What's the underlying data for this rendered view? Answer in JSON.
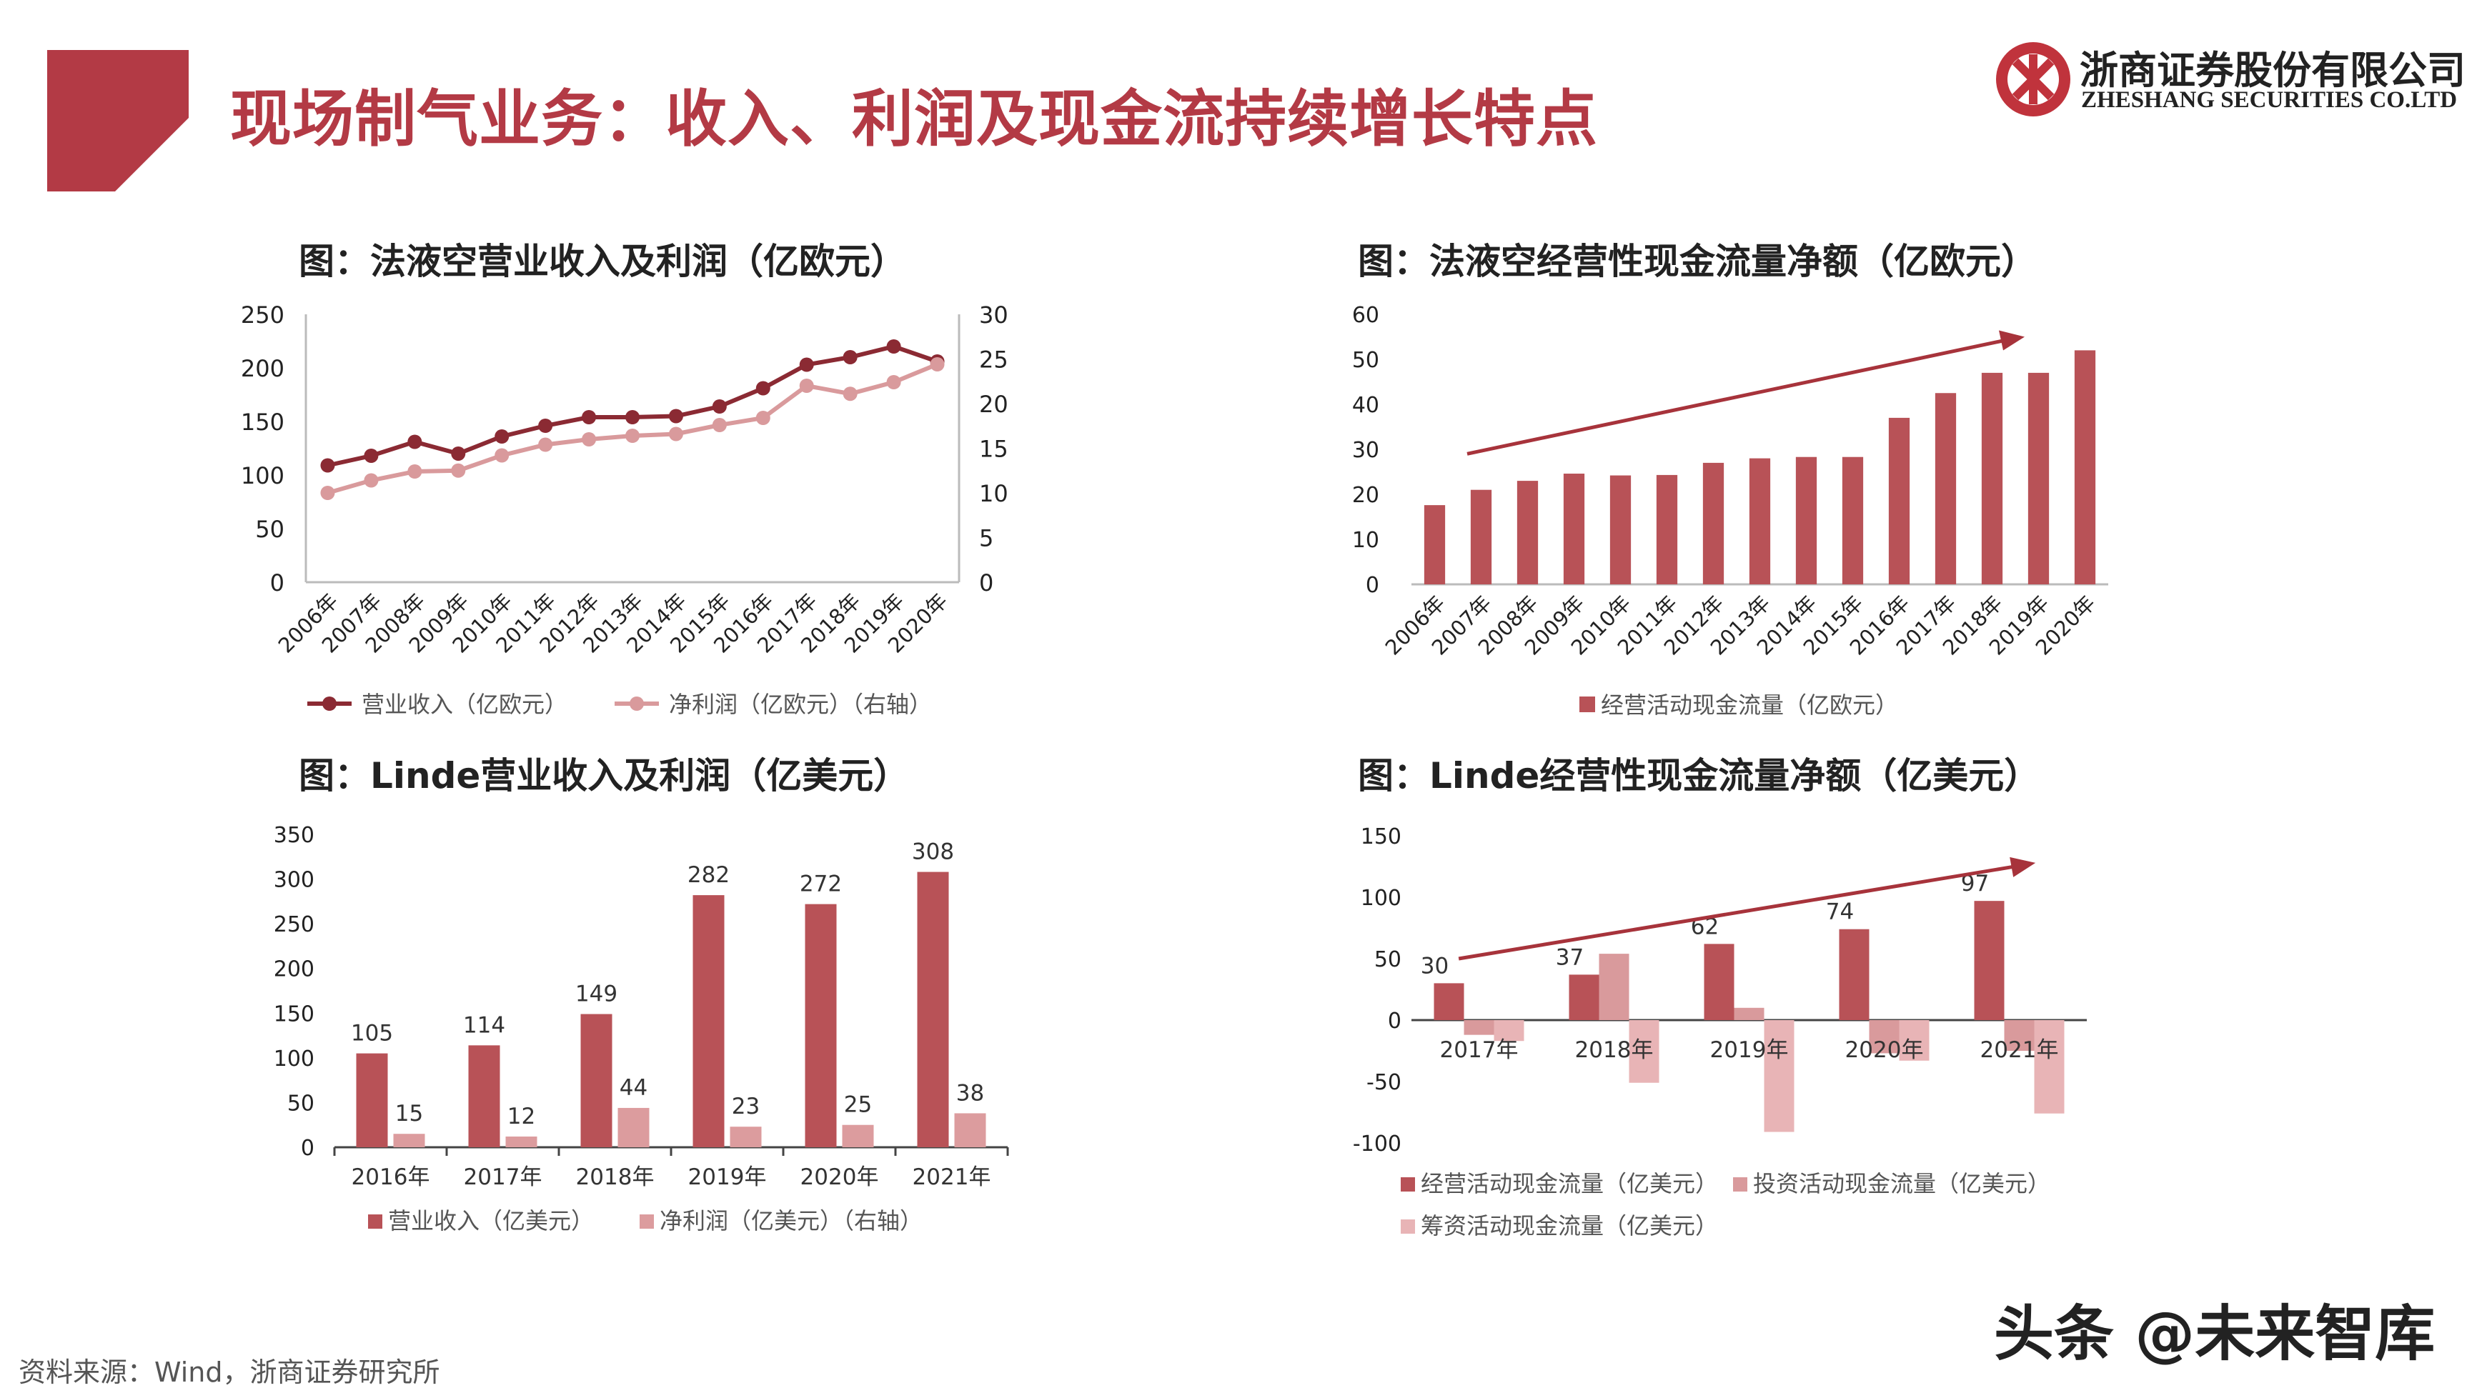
{
  "header": {
    "title": "现场制气业务：收入、利润及现金流持续增长特点",
    "logo_cn": "浙商证券股份有限公司",
    "logo_en": "ZHESHANG SECURITIES CO.LTD",
    "accent_color": "#b33a45"
  },
  "footer": {
    "source": "资料来源：Wind，浙商证券研究所",
    "watermark": "头条 @未来智库"
  },
  "chart_data": [
    {
      "id": "airliquide_revenue_profit",
      "type": "line",
      "title": "图：法液空营业收入及利润（亿欧元）",
      "categories": [
        "2006年",
        "2007年",
        "2008年",
        "2009年",
        "2010年",
        "2011年",
        "2012年",
        "2013年",
        "2014年",
        "2015年",
        "2016年",
        "2017年",
        "2018年",
        "2019年",
        "2020年"
      ],
      "series": [
        {
          "name": "营业收入（亿欧元）",
          "axis": "left",
          "color": "#8b2a33",
          "values": [
            109,
            118,
            131,
            120,
            136,
            146,
            154,
            154,
            155,
            164,
            181,
            203,
            210,
            220,
            206
          ]
        },
        {
          "name": "净利润（亿欧元）（右轴）",
          "axis": "right",
          "color": "#d99a9c",
          "values": [
            10,
            11.4,
            12.4,
            12.5,
            14.2,
            15.4,
            16.0,
            16.4,
            16.6,
            17.6,
            18.4,
            22.0,
            21.1,
            22.4,
            24.4
          ]
        }
      ],
      "ylim_left": [
        0,
        250
      ],
      "yticks_left": [
        0,
        50,
        100,
        150,
        200,
        250
      ],
      "ylim_right": [
        0,
        30
      ],
      "yticks_right": [
        0,
        5,
        10,
        15,
        20,
        25,
        30
      ],
      "legend": "bottom"
    },
    {
      "id": "airliquide_cashflow",
      "type": "bar",
      "title": "图：法液空经营性现金流量净额（亿欧元）",
      "categories": [
        "2006年",
        "2007年",
        "2008年",
        "2009年",
        "2010年",
        "2011年",
        "2012年",
        "2013年",
        "2014年",
        "2015年",
        "2016年",
        "2017年",
        "2018年",
        "2019年",
        "2020年"
      ],
      "series": [
        {
          "name": "经营活动现金流量（亿欧元）",
          "color": "#b85257",
          "values": [
            17.6,
            21.0,
            23.0,
            24.6,
            24.2,
            24.3,
            27.0,
            28.0,
            28.3,
            28.3,
            37.0,
            42.5,
            47.0,
            47.0,
            52.0
          ]
        }
      ],
      "ylim": [
        0,
        60
      ],
      "yticks": [
        0,
        10,
        20,
        30,
        40,
        50,
        60
      ],
      "trend_arrow": true,
      "legend": "bottom"
    },
    {
      "id": "linde_revenue_profit",
      "type": "bar",
      "title": "图：Linde营业收入及利润（亿美元）",
      "categories": [
        "2016年",
        "2017年",
        "2018年",
        "2019年",
        "2020年",
        "2021年"
      ],
      "series": [
        {
          "name": "营业收入（亿美元）",
          "color": "#b85257",
          "values": [
            105,
            114,
            149,
            282,
            272,
            308
          ]
        },
        {
          "name": "净利润（亿美元）（右轴）",
          "color": "#dc9c9e",
          "values": [
            15,
            12,
            44,
            23,
            25,
            38
          ]
        }
      ],
      "ylim": [
        0,
        350
      ],
      "yticks": [
        0,
        50,
        100,
        150,
        200,
        250,
        300,
        350
      ],
      "data_labels": true,
      "legend": "bottom"
    },
    {
      "id": "linde_cashflow",
      "type": "bar",
      "title": "图：Linde经营性现金流量净额（亿美元）",
      "categories": [
        "2017年",
        "2018年",
        "2019年",
        "2020年",
        "2021年"
      ],
      "series": [
        {
          "name": "经营活动现金流量（亿美元）",
          "color": "#b85257",
          "values": [
            30,
            37,
            62,
            74,
            97
          ],
          "labeled": true
        },
        {
          "name": "投资活动现金流量（亿美元）",
          "color": "#d99a9c",
          "values": [
            -12,
            54,
            10,
            -27,
            -25
          ]
        },
        {
          "name": "筹资活动现金流量（亿美元）",
          "color": "#e8b4b6",
          "values": [
            -17,
            -51,
            -91,
            -33,
            -76
          ]
        }
      ],
      "ylim": [
        -100,
        150
      ],
      "yticks": [
        -100,
        -50,
        0,
        50,
        100,
        150
      ],
      "data_labels": true,
      "trend_arrow": true,
      "legend": "bottom"
    }
  ]
}
